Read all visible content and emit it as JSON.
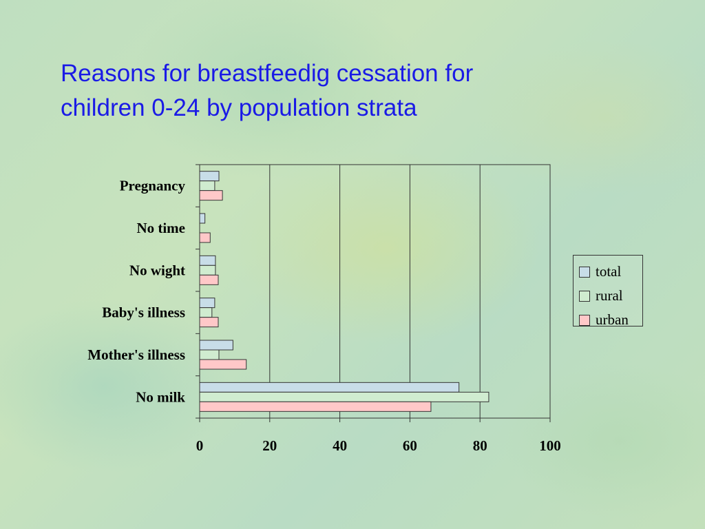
{
  "title_lines": [
    "Reasons for breastfeedig cessation for",
    "children 0-24 by population strata"
  ],
  "colors": {
    "total": "#c8dde8",
    "rural": "#d0ecd0",
    "urban": "#ffc8c8",
    "title": "#1a1ae6"
  },
  "chart_data": {
    "type": "bar",
    "orientation": "horizontal",
    "categories": [
      "Pregnancy",
      "No time",
      "No wight",
      "Baby's illness",
      "Mother's illness",
      "No milk"
    ],
    "series": [
      {
        "name": "total",
        "values": [
          5.5,
          1.5,
          4.5,
          4.3,
          9.5,
          74
        ]
      },
      {
        "name": "rural",
        "values": [
          4.3,
          0,
          4.5,
          3.5,
          5.5,
          82.5
        ]
      },
      {
        "name": "urban",
        "values": [
          6.5,
          3,
          5.3,
          5.3,
          13.3,
          66
        ]
      }
    ],
    "xlim": [
      0,
      100
    ],
    "xticks": [
      "0",
      "20",
      "40",
      "60",
      "80",
      "100"
    ],
    "grid": true,
    "legend_position": "right"
  }
}
